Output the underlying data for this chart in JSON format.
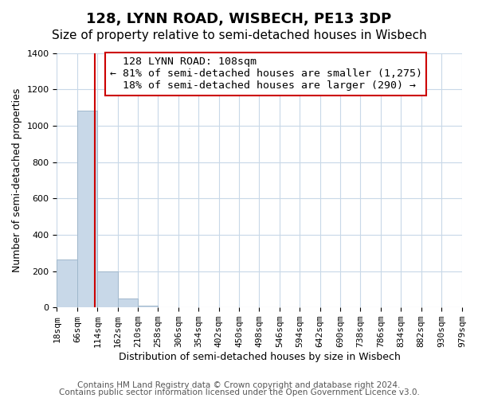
{
  "title": "128, LYNN ROAD, WISBECH, PE13 3DP",
  "subtitle": "Size of property relative to semi-detached houses in Wisbech",
  "xlabel": "Distribution of semi-detached houses by size in Wisbech",
  "ylabel": "Number of semi-detached properties",
  "footer_lines": [
    "Contains HM Land Registry data © Crown copyright and database right 2024.",
    "Contains public sector information licensed under the Open Government Licence v3.0."
  ],
  "bin_edges": [
    18,
    66,
    114,
    162,
    210,
    258,
    306,
    354,
    402,
    450,
    498,
    546,
    594,
    642,
    690,
    738,
    786,
    834,
    882,
    930,
    979
  ],
  "bin_labels": [
    "18sqm",
    "66sqm",
    "114sqm",
    "162sqm",
    "210sqm",
    "258sqm",
    "306sqm",
    "354sqm",
    "402sqm",
    "450sqm",
    "498sqm",
    "546sqm",
    "594sqm",
    "642sqm",
    "690sqm",
    "738sqm",
    "786sqm",
    "834sqm",
    "882sqm",
    "930sqm",
    "979sqm"
  ],
  "bar_heights": [
    265,
    1082,
    196,
    47,
    10,
    0,
    0,
    0,
    0,
    0,
    0,
    0,
    0,
    0,
    0,
    0,
    0,
    0,
    0,
    0
  ],
  "bar_color": "#c8d8e8",
  "bar_edgecolor": "#a0b8cc",
  "property_size": 108,
  "property_label": "128 LYNN ROAD: 108sqm",
  "pct_smaller": 81,
  "n_smaller": 1275,
  "pct_larger": 18,
  "n_larger": 290,
  "vline_color": "#cc0000",
  "annotation_box_edgecolor": "#cc0000",
  "ylim": [
    0,
    1400
  ],
  "yticks": [
    0,
    200,
    400,
    600,
    800,
    1000,
    1200,
    1400
  ],
  "grid_color": "#c8d8e8",
  "title_fontsize": 13,
  "subtitle_fontsize": 11,
  "axis_label_fontsize": 9,
  "tick_fontsize": 8,
  "annotation_fontsize": 9.5,
  "footer_fontsize": 7.5
}
